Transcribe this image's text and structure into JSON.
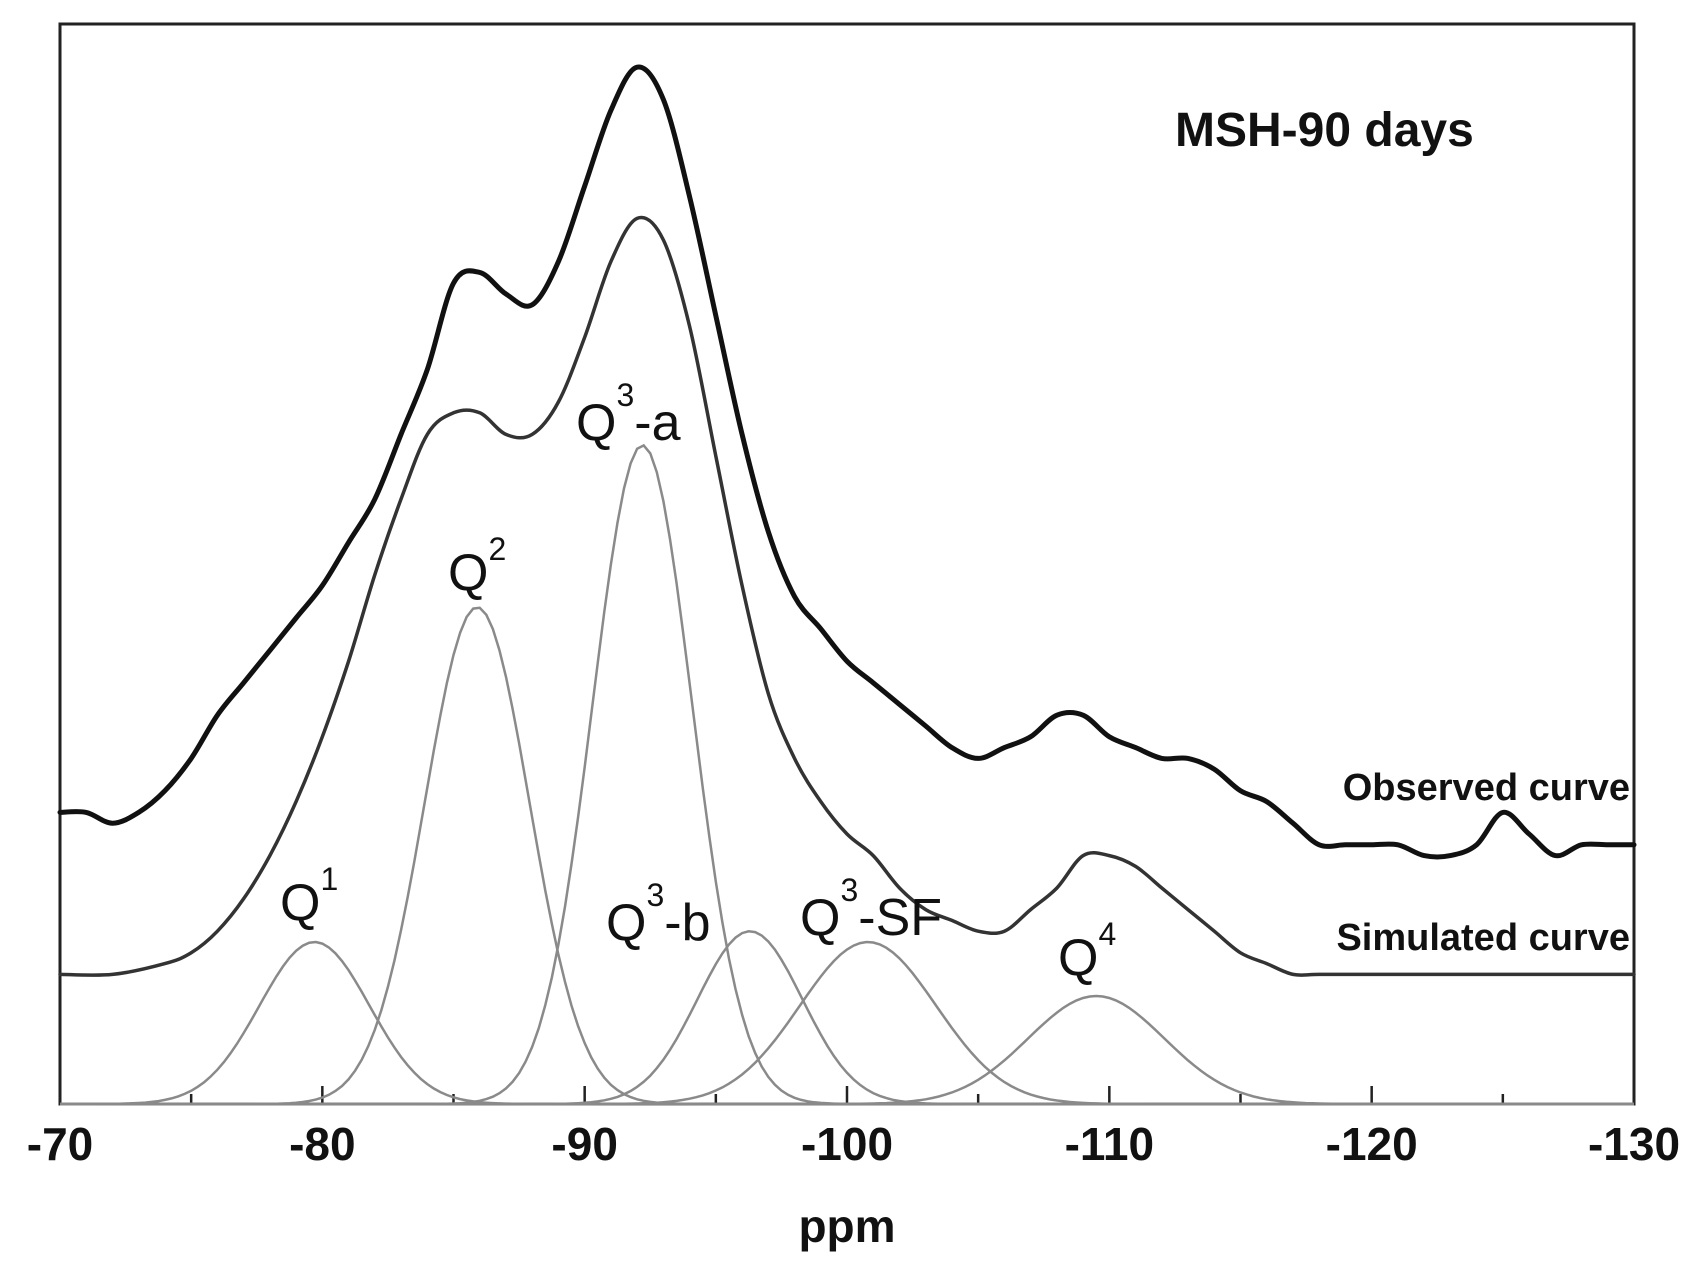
{
  "chart_data": {
    "type": "line",
    "title": "MSH-90 days",
    "xlabel": "ppm",
    "ylabel": "",
    "xlim": [
      -70,
      -130
    ],
    "ylim": [
      0,
      1
    ],
    "x_ticks": [
      -70,
      -80,
      -90,
      -100,
      -110,
      -120,
      -130
    ],
    "x_minor_step": 5,
    "series": [
      {
        "name": "Observed curve",
        "x": [
          -70,
          -71,
          -72,
          -73,
          -74,
          -75,
          -76,
          -77,
          -78,
          -79,
          -80,
          -81,
          -82,
          -83,
          -84,
          -85,
          -86,
          -87,
          -88,
          -89,
          -90,
          -91,
          -92,
          -93,
          -94,
          -95,
          -96,
          -97,
          -98,
          -99,
          -100,
          -101,
          -102,
          -103,
          -104,
          -105,
          -106,
          -107,
          -108,
          -109,
          -110,
          -111,
          -112,
          -113,
          -114,
          -115,
          -116,
          -117,
          -118,
          -119,
          -120,
          -121,
          -122,
          -123,
          -124,
          -125,
          -126,
          -127,
          -128,
          -129,
          -130
        ],
        "values": [
          0.27,
          0.27,
          0.26,
          0.27,
          0.29,
          0.32,
          0.36,
          0.39,
          0.42,
          0.45,
          0.48,
          0.52,
          0.56,
          0.62,
          0.68,
          0.76,
          0.77,
          0.75,
          0.74,
          0.78,
          0.85,
          0.92,
          0.96,
          0.93,
          0.84,
          0.73,
          0.62,
          0.53,
          0.47,
          0.44,
          0.41,
          0.39,
          0.37,
          0.35,
          0.33,
          0.32,
          0.33,
          0.34,
          0.36,
          0.36,
          0.34,
          0.33,
          0.32,
          0.32,
          0.31,
          0.29,
          0.28,
          0.26,
          0.24,
          0.24,
          0.24,
          0.24,
          0.23,
          0.23,
          0.24,
          0.27,
          0.25,
          0.23,
          0.24,
          0.24,
          0.24
        ],
        "label_text": "Observed curve"
      },
      {
        "name": "Simulated curve",
        "x": [
          -70,
          -72,
          -74,
          -75,
          -76,
          -77,
          -78,
          -79,
          -80,
          -81,
          -82,
          -83,
          -84,
          -85,
          -86,
          -87,
          -88,
          -89,
          -90,
          -91,
          -92,
          -93,
          -94,
          -95,
          -96,
          -97,
          -98,
          -99,
          -100,
          -101,
          -102,
          -103,
          -104,
          -105,
          -106,
          -107,
          -108,
          -109,
          -110,
          -111,
          -112,
          -113,
          -114,
          -115,
          -116,
          -117,
          -118,
          -120,
          -125,
          -130
        ],
        "values": [
          0.12,
          0.12,
          0.13,
          0.14,
          0.16,
          0.19,
          0.23,
          0.28,
          0.34,
          0.41,
          0.49,
          0.56,
          0.62,
          0.64,
          0.64,
          0.62,
          0.62,
          0.65,
          0.71,
          0.78,
          0.82,
          0.8,
          0.72,
          0.6,
          0.48,
          0.38,
          0.32,
          0.28,
          0.25,
          0.23,
          0.2,
          0.18,
          0.17,
          0.16,
          0.16,
          0.18,
          0.2,
          0.23,
          0.23,
          0.22,
          0.2,
          0.18,
          0.16,
          0.14,
          0.13,
          0.12,
          0.12,
          0.12,
          0.12,
          0.12
        ],
        "label_text": "Simulated curve"
      }
    ],
    "components": [
      {
        "name": "Q1",
        "base": "Q",
        "sup": "1",
        "suffix": "",
        "center": -79.7,
        "height": 0.15,
        "width": 2.1
      },
      {
        "name": "Q2",
        "base": "Q",
        "sup": "2",
        "suffix": "",
        "center": -85.9,
        "height": 0.46,
        "width": 2.0
      },
      {
        "name": "Q3-a",
        "base": "Q",
        "sup": "3",
        "suffix": "-a",
        "center": -92.2,
        "height": 0.61,
        "width": 1.9
      },
      {
        "name": "Q3-b",
        "base": "Q",
        "sup": "3",
        "suffix": "-b",
        "center": -96.3,
        "height": 0.16,
        "width": 2.0
      },
      {
        "name": "Q3-SF",
        "base": "Q",
        "sup": "3",
        "suffix": "-SF",
        "center": -100.8,
        "height": 0.15,
        "width": 2.6
      },
      {
        "name": "Q4",
        "base": "Q",
        "sup": "4",
        "suffix": "",
        "center": -109.5,
        "height": 0.1,
        "width": 2.6
      }
    ]
  }
}
